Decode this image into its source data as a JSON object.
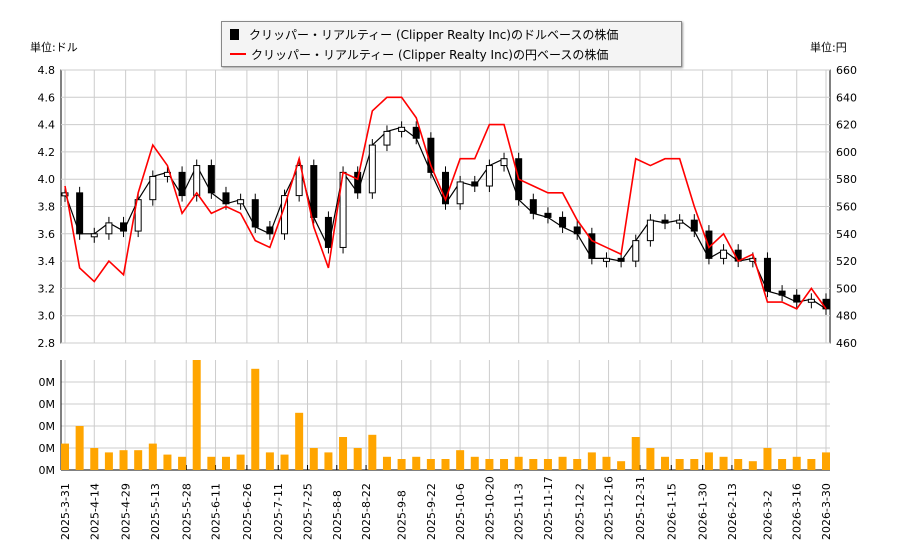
{
  "chart_data": [
    {
      "type": "line",
      "legend": [
        "クリッパー・リアルティー (Clipper Realty Inc)のドルベースの株価",
        "クリッパー・リアルティー (Clipper Realty Inc)の円ベースの株価"
      ],
      "legend_placement": "top-center",
      "left_unit": "単位:ドル",
      "right_unit": "単位:円",
      "grid": true,
      "x": [
        "2025-03-31",
        "2025-04-07",
        "2025-04-14",
        "2025-04-21",
        "2025-04-28",
        "2025-05-05",
        "2025-05-12",
        "2025-05-19",
        "2025-05-26",
        "2025-06-02",
        "2025-06-09",
        "2025-06-16",
        "2025-06-23",
        "2025-06-30",
        "2025-07-07",
        "2025-07-14",
        "2025-07-21",
        "2025-07-28",
        "2025-08-04",
        "2025-08-11",
        "2025-08-18",
        "2025-08-25",
        "2025-09-01",
        "2025-09-08",
        "2025-09-15",
        "2025-09-22",
        "2025-09-29",
        "2025-10-06",
        "2025-10-13",
        "2025-10-20",
        "2025-10-27",
        "2025-11-03",
        "2025-11-10",
        "2025-11-17",
        "2025-11-24",
        "2025-12-01",
        "2025-12-08",
        "2025-12-15",
        "2025-12-22",
        "2025-12-29",
        "2026-01-05",
        "2026-01-12",
        "2026-01-19",
        "2026-01-26",
        "2026-02-02",
        "2026-02-09",
        "2026-02-16",
        "2026-02-23",
        "2026-03-02",
        "2026-03-09",
        "2026-03-16",
        "2026-03-23",
        "2026-03-30"
      ],
      "x_ticks": [
        "2025-3-31",
        "2025-4-14",
        "2025-4-29",
        "2025-5-13",
        "2025-5-28",
        "2025-6-11",
        "2025-6-26",
        "2025-7-11",
        "2025-7-25",
        "2025-8-8",
        "2025-8-22",
        "2025-9-8",
        "2025-9-22",
        "2025-10-6",
        "2025-10-20",
        "2025-11-3",
        "2025-11-17",
        "2025-12-2",
        "2025-12-16",
        "2025-12-31",
        "2026-1-15",
        "2026-1-30",
        "2026-2-13",
        "2026-3-2",
        "2026-3-16",
        "2026-3-30"
      ],
      "series": [
        {
          "name": "クリッパー・リアルティー (Clipper Realty Inc)のドルベースの株価",
          "axis": "left",
          "color": "#000000",
          "values": [
            3.9,
            3.6,
            3.6,
            3.68,
            3.62,
            3.85,
            4.02,
            4.05,
            3.88,
            4.1,
            3.9,
            3.82,
            3.85,
            3.65,
            3.6,
            3.88,
            4.1,
            3.72,
            3.5,
            4.05,
            3.9,
            4.25,
            4.35,
            4.38,
            4.3,
            4.05,
            3.82,
            3.98,
            3.95,
            4.1,
            4.15,
            3.85,
            3.75,
            3.72,
            3.65,
            3.6,
            3.42,
            3.42,
            3.4,
            3.55,
            3.7,
            3.68,
            3.7,
            3.62,
            3.42,
            3.48,
            3.4,
            3.42,
            3.18,
            3.15,
            3.1,
            3.12,
            3.05
          ]
        },
        {
          "name": "クリッパー・リアルティー (Clipper Realty Inc)の円ベースの株価",
          "axis": "right",
          "color": "#ff0000",
          "values": [
            575,
            515,
            505,
            520,
            510,
            570,
            605,
            590,
            555,
            570,
            555,
            560,
            555,
            535,
            530,
            560,
            595,
            545,
            515,
            585,
            580,
            630,
            640,
            640,
            625,
            590,
            565,
            595,
            595,
            620,
            620,
            580,
            575,
            570,
            570,
            550,
            535,
            530,
            525,
            595,
            590,
            595,
            595,
            560,
            530,
            540,
            520,
            525,
            490,
            490,
            485,
            500,
            485
          ]
        }
      ],
      "left_ylim": [
        2.8,
        4.8
      ],
      "left_ticks": [
        "2.8",
        "3.0",
        "3.2",
        "3.4",
        "3.6",
        "3.8",
        "4.0",
        "4.2",
        "4.4",
        "4.6",
        "4.8"
      ],
      "right_ylim": [
        460,
        660
      ],
      "right_ticks": [
        "460",
        "480",
        "500",
        "520",
        "540",
        "560",
        "580",
        "600",
        "620",
        "640",
        "660"
      ]
    },
    {
      "type": "bar",
      "color": "#ffa500",
      "ylim": [
        0,
        0.05
      ],
      "y_ticks": [
        "0M",
        "0M",
        "0M",
        "0M",
        "0M"
      ],
      "values": [
        0.012,
        0.02,
        0.01,
        0.008,
        0.009,
        0.009,
        0.012,
        0.007,
        0.006,
        0.05,
        0.006,
        0.006,
        0.007,
        0.046,
        0.008,
        0.007,
        0.026,
        0.01,
        0.008,
        0.015,
        0.01,
        0.016,
        0.006,
        0.005,
        0.006,
        0.005,
        0.005,
        0.009,
        0.006,
        0.005,
        0.005,
        0.006,
        0.005,
        0.005,
        0.006,
        0.005,
        0.008,
        0.006,
        0.004,
        0.015,
        0.01,
        0.006,
        0.005,
        0.005,
        0.008,
        0.006,
        0.005,
        0.004,
        0.01,
        0.005,
        0.006,
        0.005,
        0.008
      ]
    }
  ]
}
